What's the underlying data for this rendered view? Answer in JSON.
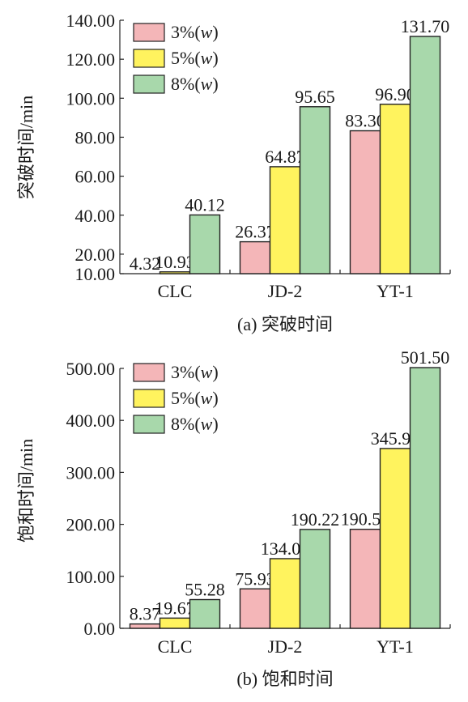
{
  "chart_data": [
    {
      "type": "bar",
      "caption": "(a) 突破时间",
      "ylabel": "突破时间/min",
      "xlabel": "",
      "categories": [
        "CLC",
        "JD-2",
        "YT-1"
      ],
      "ylim": [
        10,
        140
      ],
      "yticks": [
        "10.00",
        "20.00",
        "40.00",
        "60.00",
        "80.00",
        "100.00",
        "120.00",
        "140.00"
      ],
      "grid": false,
      "legend_position": "top-left",
      "series": [
        {
          "name": "3%(w)",
          "color": "#f4b6b8",
          "values": [
            4.32,
            26.37,
            83.3
          ],
          "labels": [
            "4.32",
            "26.37",
            "83.30"
          ]
        },
        {
          "name": "5%(w)",
          "color": "#fff35e",
          "values": [
            10.93,
            64.87,
            96.9
          ],
          "labels": [
            "10.93",
            "64.87",
            "96.90"
          ]
        },
        {
          "name": "8%(w)",
          "color": "#a8d8ab",
          "values": [
            40.12,
            95.65,
            131.7
          ],
          "labels": [
            "40.12",
            "95.65",
            "131.70"
          ]
        }
      ]
    },
    {
      "type": "bar",
      "caption": "(b) 饱和时间",
      "ylabel": "饱和时间/min",
      "xlabel": "",
      "categories": [
        "CLC",
        "JD-2",
        "YT-1"
      ],
      "ylim": [
        0,
        500
      ],
      "yticks": [
        "0.00",
        "100.00",
        "200.00",
        "300.00",
        "400.00",
        "500.00"
      ],
      "grid": false,
      "legend_position": "top-left",
      "series": [
        {
          "name": "3%(w)",
          "color": "#f4b6b8",
          "values": [
            8.37,
            75.93,
            190.5
          ],
          "labels": [
            "8.37",
            "75.93",
            "190.50"
          ]
        },
        {
          "name": "5%(w)",
          "color": "#fff35e",
          "values": [
            19.67,
            134.01,
            345.9
          ],
          "labels": [
            "19.67",
            "134.01",
            "345.90"
          ]
        },
        {
          "name": "8%(w)",
          "color": "#a8d8ab",
          "values": [
            55.28,
            190.22,
            501.5
          ],
          "labels": [
            "55.28",
            "190.22",
            "501.50"
          ]
        }
      ]
    }
  ]
}
